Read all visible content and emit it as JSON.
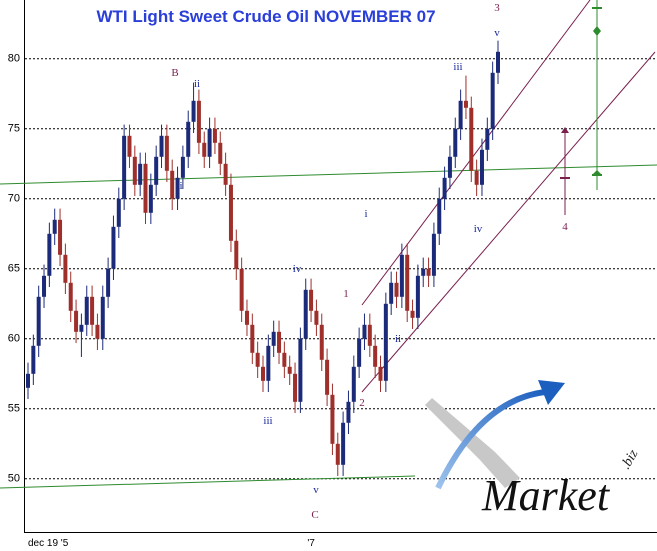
{
  "chart_data": {
    "type": "candlestick",
    "title": "WTI Light Sweet Crude Oil NOVEMBER 07",
    "categories": [
      "dec 19 '5",
      null,
      null,
      null,
      null,
      null,
      null,
      null,
      null,
      null,
      null,
      null,
      null,
      null,
      null,
      null,
      null,
      null,
      null,
      null,
      null,
      null,
      null,
      null,
      null,
      null,
      null,
      null,
      null,
      null,
      null,
      null,
      null,
      null,
      null,
      null,
      null,
      null,
      null,
      null,
      null,
      null,
      null,
      null,
      null,
      null,
      null,
      null,
      null,
      null,
      null,
      null,
      null,
      "'7",
      null,
      null,
      null,
      null,
      null,
      null,
      null,
      null,
      null,
      null,
      null,
      null,
      null,
      null,
      null,
      null,
      null,
      null,
      null,
      null,
      null,
      null,
      null,
      null,
      null,
      null,
      null,
      null,
      null,
      null,
      null,
      null,
      null,
      null,
      null
    ],
    "open": [
      56.5,
      57.5,
      59.5,
      63,
      64.5,
      67.5,
      68.5,
      66,
      64,
      62,
      60.5,
      61,
      63,
      61,
      60,
      63,
      65,
      68,
      70,
      74.5,
      73,
      71,
      72.5,
      69,
      71,
      73,
      74.5,
      72,
      70,
      71.5,
      73,
      75.5,
      77,
      74,
      73,
      75,
      74,
      72.5,
      71,
      67,
      65,
      62,
      61,
      59,
      58,
      57,
      59.5,
      60.5,
      59,
      58,
      57.5,
      55.5,
      60,
      63.5,
      62,
      61,
      58.5,
      56,
      52.5,
      51,
      54,
      55.5,
      58,
      60,
      61,
      59.5,
      58,
      57,
      62.5,
      64,
      63,
      66,
      62,
      61.5,
      64.5,
      65,
      64.5,
      67.5,
      70,
      71.5,
      73,
      75,
      77,
      76.5,
      72,
      71,
      73.5,
      75,
      79
    ],
    "high": [
      58.3,
      60.3,
      63.8,
      65.3,
      68.3,
      69.3,
      69.3,
      66.8,
      64.8,
      62.8,
      61.8,
      63.8,
      63.8,
      61.8,
      63.8,
      65.8,
      68.8,
      70.8,
      75.3,
      75.3,
      73.8,
      73.3,
      73.3,
      71.8,
      73.8,
      75.3,
      75.3,
      72.8,
      72.3,
      73.8,
      76.3,
      78.3,
      77.8,
      74.8,
      75.8,
      75.8,
      74.8,
      73.3,
      71.8,
      67.8,
      65.8,
      62.8,
      61.8,
      59.8,
      58.8,
      60.3,
      61.3,
      61.3,
      59.8,
      58.8,
      58.3,
      60.8,
      64.3,
      64.3,
      62.8,
      61.8,
      59.3,
      56.8,
      53.3,
      54.8,
      56.3,
      58.8,
      60.8,
      61.8,
      61.8,
      60.3,
      58.8,
      63.3,
      64.8,
      64.8,
      66.8,
      66.8,
      62.8,
      65.3,
      65.8,
      65.8,
      68.3,
      70.8,
      72.3,
      73.8,
      75.8,
      77.8,
      78.8,
      77.3,
      72.8,
      74.3,
      75.8,
      79.8,
      81.3
    ],
    "low": [
      55.7,
      56.7,
      58.7,
      62.2,
      63.7,
      66.7,
      65.2,
      63.2,
      61.2,
      59.7,
      58.7,
      60.2,
      60.2,
      59.2,
      59.2,
      62.2,
      64.2,
      67.2,
      69.2,
      72.2,
      70.2,
      70.2,
      68.2,
      68.2,
      70.2,
      72.2,
      71.2,
      69.2,
      69.2,
      70.7,
      72.2,
      74.7,
      73.2,
      72.2,
      72.2,
      73.2,
      71.7,
      70.2,
      66.2,
      64.2,
      61.2,
      60.2,
      58.2,
      57.2,
      56.2,
      56.2,
      58.7,
      58.2,
      57.2,
      56.7,
      54.7,
      54.7,
      59.2,
      61.2,
      60.2,
      57.7,
      55.2,
      51.7,
      50.2,
      50.2,
      53.2,
      54.7,
      57.2,
      59.2,
      58.7,
      57.2,
      56.2,
      56.2,
      61.7,
      62.2,
      62.2,
      61.2,
      60.7,
      60.7,
      63.7,
      63.7,
      63.7,
      66.7,
      69.2,
      70.7,
      72.2,
      74.2,
      75.7,
      71.2,
      70.2,
      70.2,
      72.7,
      74.2,
      78.2
    ],
    "close": [
      57.5,
      59.5,
      63,
      64.5,
      67.5,
      68.5,
      66,
      64,
      62,
      60.5,
      61,
      63,
      61,
      60,
      63,
      65,
      68,
      70,
      74.5,
      73,
      71,
      72.5,
      69,
      71,
      73,
      74.5,
      72,
      70,
      71.5,
      73,
      75.5,
      77,
      74,
      73,
      75,
      74,
      72.5,
      71,
      67,
      65,
      62,
      61,
      59,
      58,
      57,
      59.5,
      60.5,
      59,
      58,
      57.5,
      55.5,
      60,
      63.5,
      62,
      61,
      58.5,
      56,
      52.5,
      51,
      54,
      55.5,
      58,
      60,
      61,
      59.5,
      58,
      57,
      62.5,
      64,
      63,
      66,
      62,
      61.5,
      64.5,
      65,
      64.5,
      67.5,
      70,
      71.5,
      73,
      75,
      77,
      76.5,
      72,
      71,
      73.5,
      75,
      79,
      80.5
    ],
    "up_color": "#1c2a7a",
    "down_color": "#9e2f2a",
    "ylim": [
      46.2,
      84.2
    ],
    "yticks": [
      50,
      55,
      60,
      65,
      70,
      75,
      80
    ],
    "grid": true,
    "annotations": [
      "B",
      "ii",
      "i",
      "iv",
      "iii",
      "v",
      "C",
      "1",
      "2",
      "i",
      "ii",
      "iii",
      "iv",
      "v",
      "3",
      "4"
    ],
    "logo": {
      "text": "Market",
      "suffix": ".biz"
    }
  }
}
